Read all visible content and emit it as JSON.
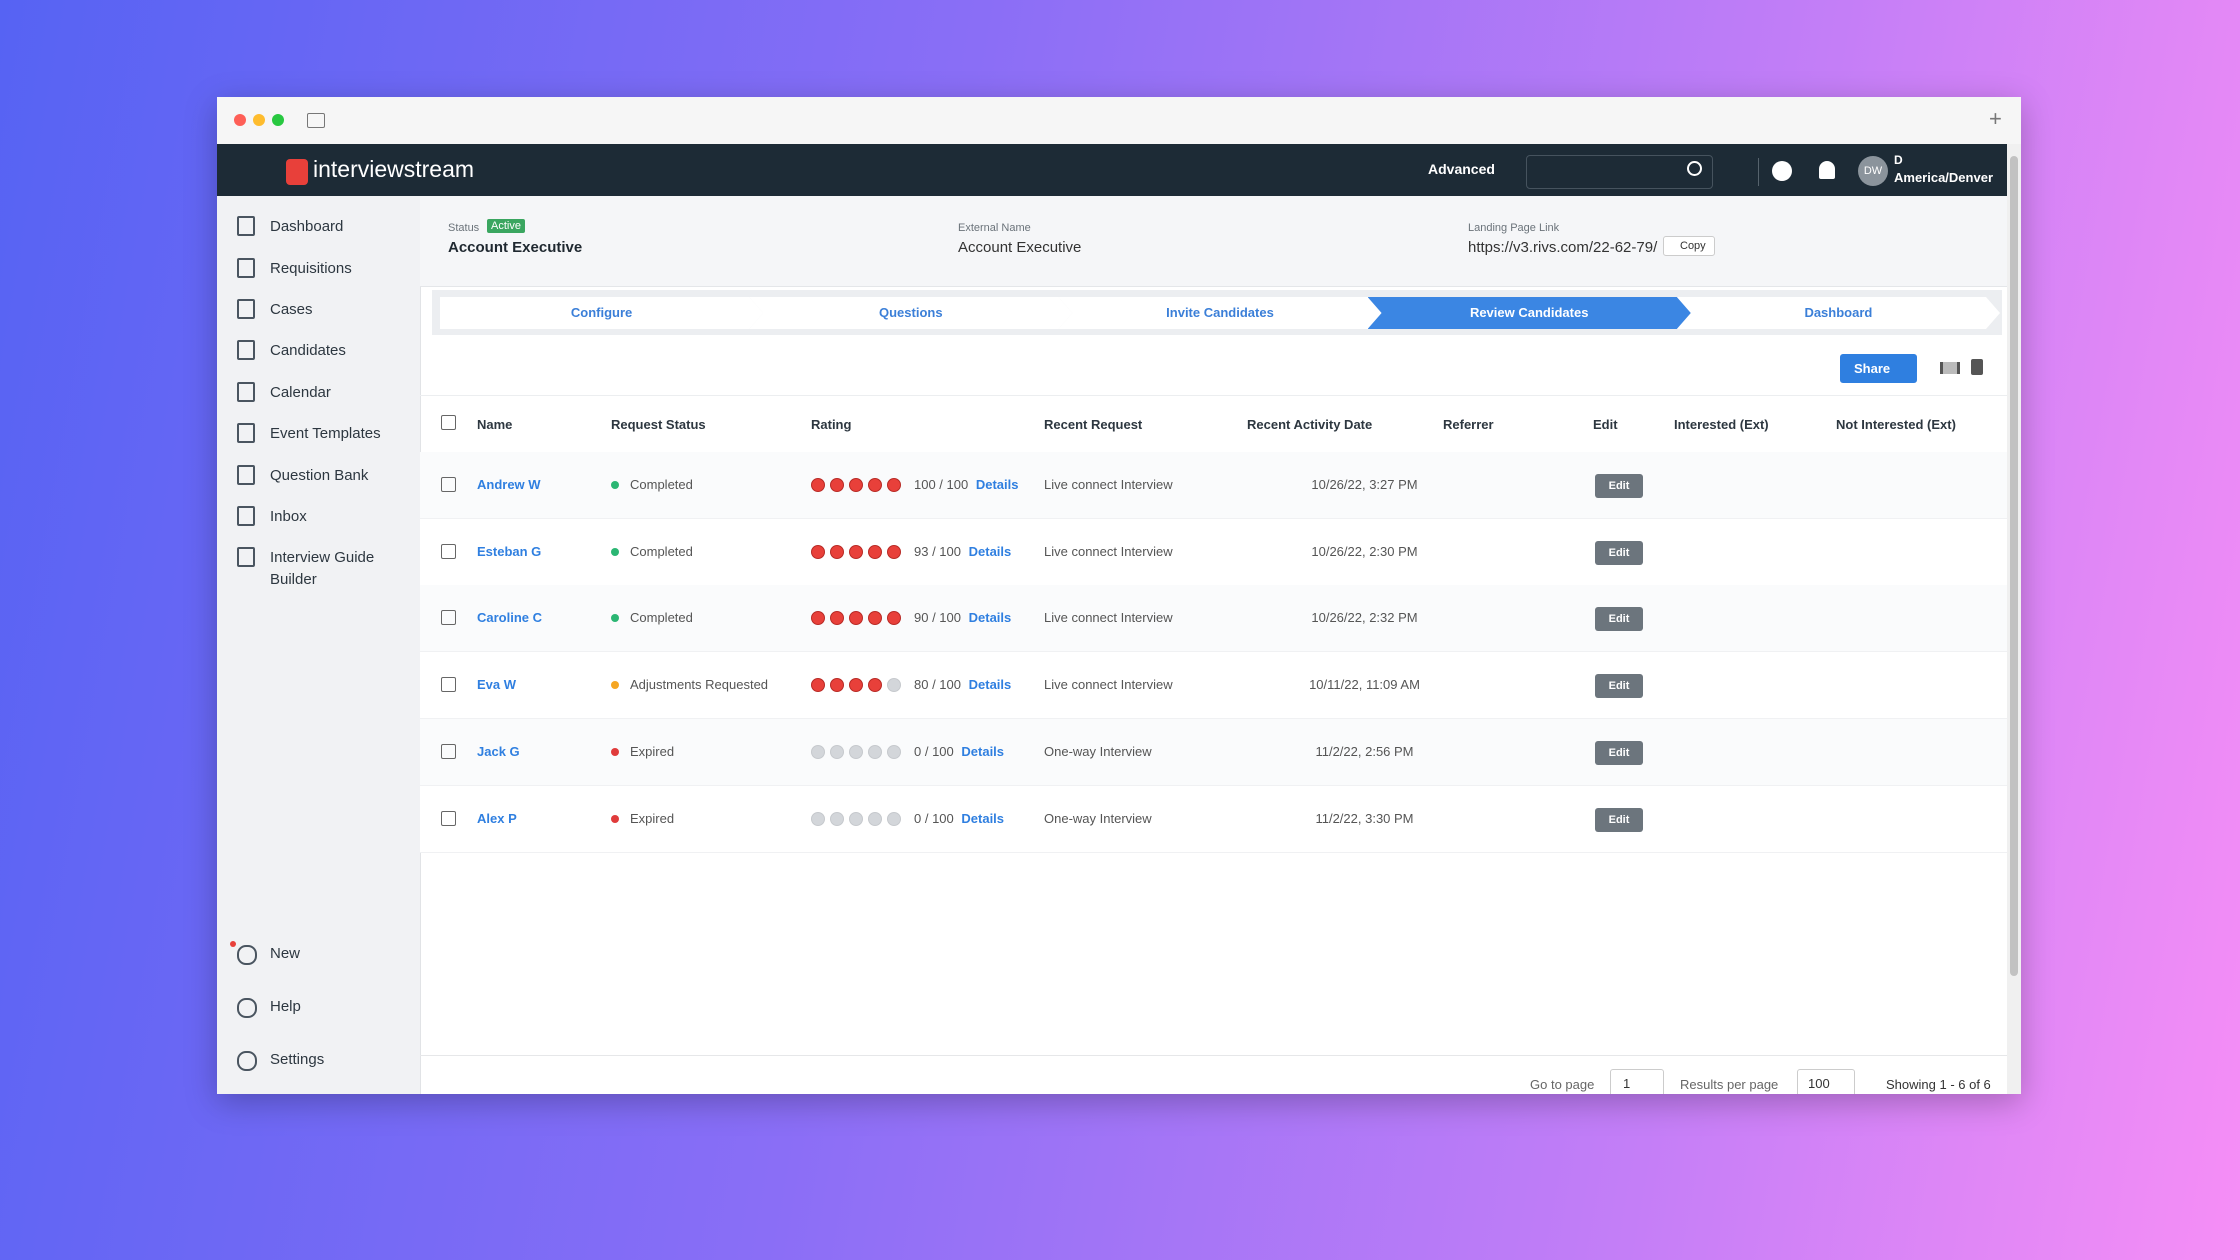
{
  "header": {
    "logo": "interviewstream",
    "advanced": "Advanced",
    "avatar": "DW",
    "user_initial": "D",
    "timezone": "America/Denver"
  },
  "sidebar": {
    "items": [
      "Dashboard",
      "Requisitions",
      "Cases",
      "Candidates",
      "Calendar",
      "Event Templates",
      "Question Bank",
      "Inbox",
      "Interview Guide Builder"
    ],
    "bottom": [
      "New",
      "Help",
      "Settings"
    ]
  },
  "record": {
    "status_label": "Status",
    "status": "Active",
    "title": "Account Executive",
    "external_label": "External Name",
    "external": "Account Executive",
    "landing_label": "Landing Page Link",
    "landing": "https://v3.rivs.com/22-62-79/",
    "copy": "Copy"
  },
  "steps": [
    "Configure",
    "Questions",
    "Invite Candidates",
    "Review Candidates",
    "Dashboard"
  ],
  "active_step": 3,
  "toolbar": {
    "share": "Share"
  },
  "table": {
    "columns": [
      "Name",
      "Request Status",
      "Rating",
      "Recent Request",
      "Recent Activity Date",
      "Referrer",
      "Edit",
      "Interested (Ext)",
      "Not Interested (Ext)"
    ],
    "rows": [
      {
        "name": "Andrew W",
        "status": "Completed",
        "status_color": "#2bb673",
        "rating": 5,
        "score": "100 / 100",
        "details": "Details",
        "request": "Live connect Interview",
        "date": "10/26/22, 3:27 PM",
        "edit": "Edit"
      },
      {
        "name": "Esteban G",
        "status": "Completed",
        "status_color": "#2bb673",
        "rating": 5,
        "score": "93 / 100",
        "details": "Details",
        "request": "Live connect Interview",
        "date": "10/26/22, 2:30 PM",
        "edit": "Edit"
      },
      {
        "name": "Caroline C",
        "status": "Completed",
        "status_color": "#2bb673",
        "rating": 5,
        "score": "90 / 100",
        "details": "Details",
        "request": "Live connect Interview",
        "date": "10/26/22, 2:32 PM",
        "edit": "Edit"
      },
      {
        "name": "Eva W",
        "status": "Adjustments Requested",
        "status_color": "#f5a623",
        "rating": 4,
        "score": "80 / 100",
        "details": "Details",
        "request": "Live connect Interview",
        "date": "10/11/22, 11:09 AM",
        "edit": "Edit"
      },
      {
        "name": "Jack G",
        "status": "Expired",
        "status_color": "#e03b3b",
        "rating": 0,
        "score": "0 / 100",
        "details": "Details",
        "request": "One-way Interview",
        "date": "11/2/22, 2:56 PM",
        "edit": "Edit"
      },
      {
        "name": "Alex P",
        "status": "Expired",
        "status_color": "#e03b3b",
        "rating": 0,
        "score": "0 / 100",
        "details": "Details",
        "request": "One-way Interview",
        "date": "11/2/22, 3:30 PM",
        "edit": "Edit"
      }
    ]
  },
  "footer": {
    "go_to_page": "Go to page",
    "page": "1",
    "results_per_page": "Results per page",
    "per_page": "100",
    "showing": "Showing 1 - 6 of 6"
  }
}
